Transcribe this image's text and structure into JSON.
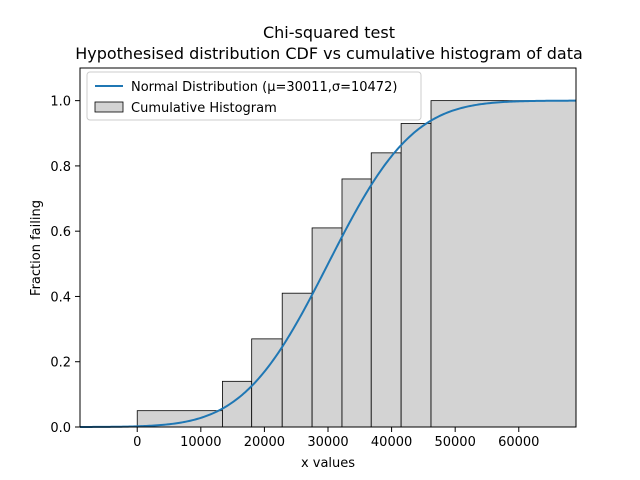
{
  "chart_data": {
    "type": "area",
    "title": "Chi-squared test",
    "subtitle": "Hypothesised distribution CDF vs cumulative histogram of data",
    "xlabel": "x values",
    "ylabel": "Fraction failing",
    "xlim": [
      -9000,
      69000
    ],
    "ylim": [
      0,
      1.1
    ],
    "xticks": [
      0,
      10000,
      20000,
      30000,
      40000,
      50000,
      60000
    ],
    "yticks": [
      0.0,
      0.2,
      0.4,
      0.6,
      0.8,
      1.0
    ],
    "xtick_labels": [
      "0",
      "10000",
      "20000",
      "30000",
      "40000",
      "50000",
      "60000"
    ],
    "ytick_labels": [
      "0.0",
      "0.2",
      "0.4",
      "0.6",
      "0.8",
      "1.0"
    ],
    "grid": false,
    "legend": {
      "position": "upper-left",
      "entries": [
        {
          "label": "Normal Distribution (μ=30011,σ=10472)",
          "kind": "line",
          "color": "#1f77b4"
        },
        {
          "label": "Cumulative Histogram",
          "kind": "patch",
          "color": "#d3d3d3"
        }
      ]
    },
    "histogram": {
      "name": "Cumulative Histogram",
      "color": "#d3d3d3",
      "edge_color": "#000000",
      "bins": [
        {
          "x0": 0,
          "x1": 13400,
          "value": 0.05
        },
        {
          "x0": 13400,
          "x1": 18000,
          "value": 0.14
        },
        {
          "x0": 18000,
          "x1": 22800,
          "value": 0.27
        },
        {
          "x0": 22800,
          "x1": 27500,
          "value": 0.41
        },
        {
          "x0": 27500,
          "x1": 32200,
          "value": 0.61
        },
        {
          "x0": 32200,
          "x1": 36800,
          "value": 0.76
        },
        {
          "x0": 36800,
          "x1": 41500,
          "value": 0.84
        },
        {
          "x0": 41500,
          "x1": 46200,
          "value": 0.93
        },
        {
          "x0": 46200,
          "x1": 69000,
          "value": 1.0
        }
      ]
    },
    "cdf": {
      "name": "Normal Distribution (μ=30011,σ=10472)",
      "mu": 30011,
      "sigma": 10472,
      "color": "#1f77b4"
    }
  }
}
